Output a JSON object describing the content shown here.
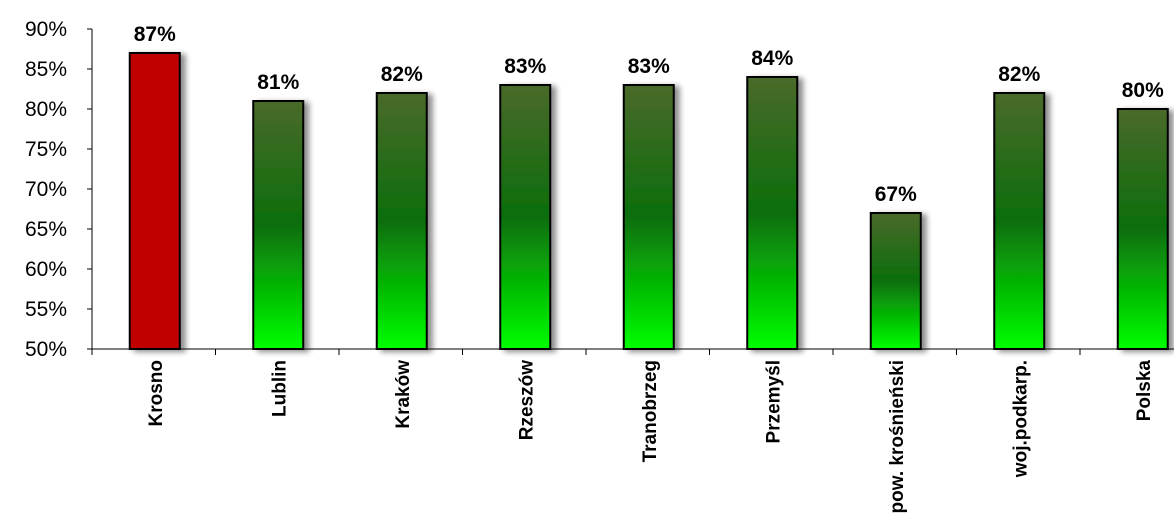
{
  "chart_data": {
    "type": "bar",
    "categories": [
      "Krosno",
      "Lublin",
      "Kraków",
      "Rzeszów",
      "Tranobrzeg",
      "Przemyśl",
      "pow. krośnieński",
      "woj.podkarp.",
      "Polska"
    ],
    "values": [
      87,
      81,
      82,
      83,
      83,
      84,
      67,
      82,
      80
    ],
    "data_labels": [
      "87%",
      "81%",
      "82%",
      "83%",
      "83%",
      "84%",
      "67%",
      "82%",
      "80%"
    ],
    "title": "",
    "xlabel": "",
    "ylabel": "",
    "ylim": [
      50,
      90
    ],
    "yticks": [
      "50%",
      "55%",
      "60%",
      "65%",
      "70%",
      "75%",
      "80%",
      "85%",
      "90%"
    ],
    "grid": false,
    "legend": "none",
    "highlight_category": "Krosno",
    "colors": {
      "highlight": "#c00000",
      "bar_top": "#4a6a2a",
      "bar_mid": "#0b6e0b",
      "bar_bottom": "#00ff00",
      "outline": "#000000",
      "axis": "#000000"
    }
  }
}
